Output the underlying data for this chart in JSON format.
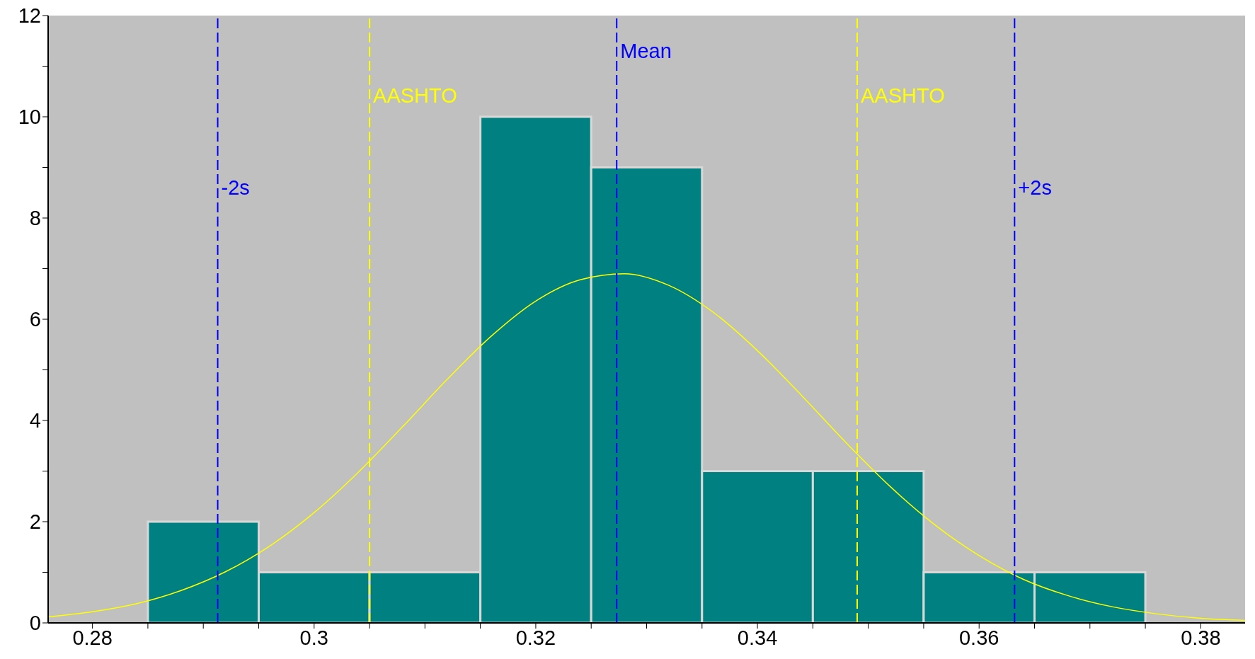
{
  "chart_data": {
    "type": "histogram",
    "series": [
      {
        "bins": [
          0.285,
          0.295,
          0.305,
          0.315,
          0.325,
          0.335,
          0.345,
          0.355,
          0.365,
          0.375
        ],
        "values": [
          2,
          1,
          1,
          10,
          9,
          3,
          3,
          1,
          1
        ],
        "color": "#008080"
      },
      {
        "type": "line",
        "x": [
          0.276,
          0.28,
          0.284,
          0.288,
          0.292,
          0.296,
          0.3,
          0.304,
          0.308,
          0.312,
          0.316,
          0.32,
          0.324,
          0.328,
          0.332,
          0.336,
          0.34,
          0.344,
          0.348,
          0.352,
          0.356,
          0.36,
          0.364,
          0.368,
          0.372,
          0.376,
          0.38,
          0.384
        ],
        "values": [
          0.12,
          0.22,
          0.38,
          0.64,
          1.01,
          1.52,
          2.18,
          2.98,
          3.88,
          4.81,
          5.67,
          6.36,
          6.78,
          6.9,
          6.67,
          6.14,
          5.38,
          4.49,
          3.56,
          2.69,
          1.94,
          1.33,
          0.86,
          0.54,
          0.32,
          0.18,
          0.09,
          0.05
        ],
        "color": "#ffff00"
      }
    ],
    "xlim": [
      0.276,
      0.384
    ],
    "xticks": [
      0.28,
      {
        "value": 0.285,
        "label": null
      },
      {
        "value": 0.29,
        "label": null
      },
      {
        "value": 0.295,
        "label": null
      },
      0.3,
      {
        "value": 0.305,
        "label": null
      },
      {
        "value": 0.31,
        "label": null
      },
      {
        "value": 0.315,
        "label": null
      },
      0.32,
      {
        "value": 0.325,
        "label": null
      },
      {
        "value": 0.33,
        "label": null
      },
      {
        "value": 0.335,
        "label": null
      },
      0.34,
      {
        "value": 0.345,
        "label": null
      },
      {
        "value": 0.35,
        "label": null
      },
      {
        "value": 0.355,
        "label": null
      },
      0.36,
      {
        "value": 0.365,
        "label": null
      },
      {
        "value": 0.37,
        "label": null
      },
      {
        "value": 0.375,
        "label": null
      },
      0.38
    ],
    "ylim": [
      0,
      12
    ],
    "yticks": [
      0,
      {
        "value": 1,
        "label": null
      },
      2,
      {
        "value": 3,
        "label": null
      },
      4,
      {
        "value": 5,
        "label": null
      },
      6,
      {
        "value": 7,
        "label": null
      },
      8,
      {
        "value": 9,
        "label": null
      },
      10,
      {
        "value": 11,
        "label": null
      },
      12
    ],
    "ref_lines": [
      {
        "axis": "x",
        "value": 0.2913,
        "label": "-2s",
        "color": "#0000ff",
        "line_style": "dashed"
      },
      {
        "axis": "x",
        "value": 0.305,
        "label": "AASHTO",
        "color": "#ffff00",
        "line_style": "dashed"
      },
      {
        "axis": "x",
        "value": 0.3273,
        "label": "Mean",
        "color": "#0000ff",
        "line_style": "dashed"
      },
      {
        "axis": "x",
        "value": 0.349,
        "label": "AASHTO",
        "color": "#ffff00",
        "line_style": "dashed"
      },
      {
        "axis": "x",
        "value": 0.3632,
        "label": "+2s",
        "color": "#0000ff",
        "line_style": "dashed"
      }
    ]
  }
}
